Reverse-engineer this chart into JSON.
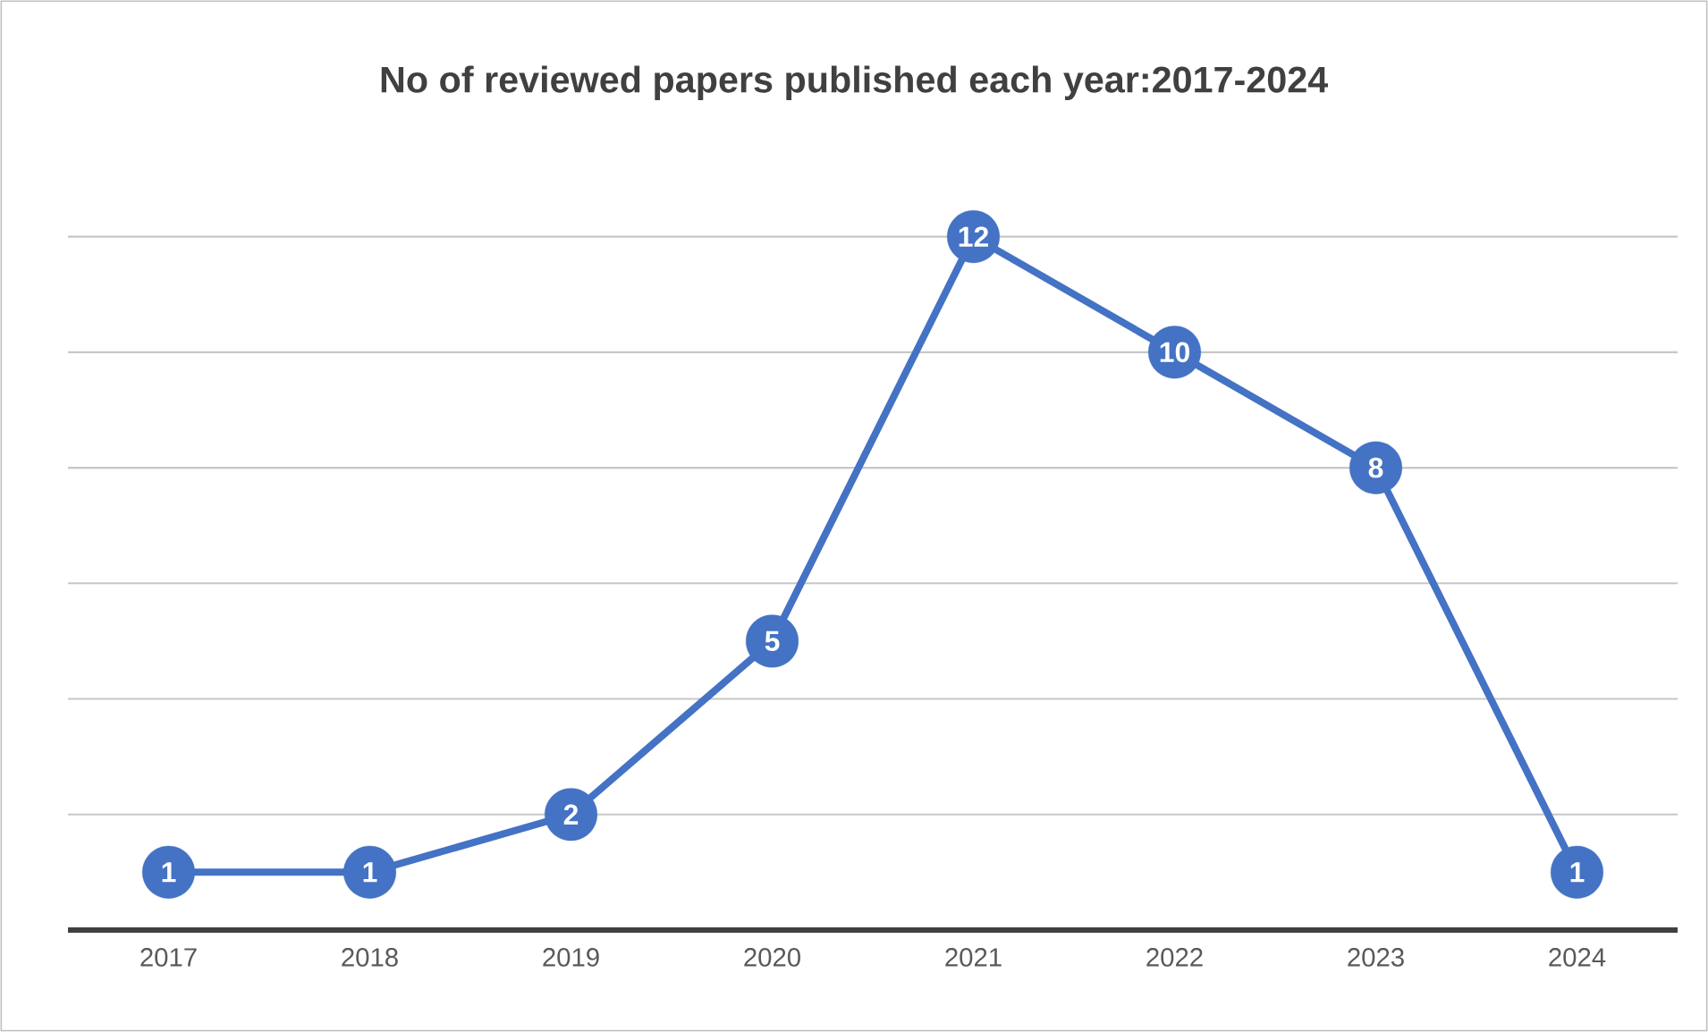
{
  "chart_data": {
    "type": "line",
    "title": "No of reviewed papers published each year:2017-2024",
    "categories": [
      "2017",
      "2018",
      "2019",
      "2020",
      "2021",
      "2022",
      "2023",
      "2024"
    ],
    "series": [
      {
        "color": "#4472c4",
        "values": [
          1,
          1,
          2,
          5,
          12,
          10,
          8,
          1
        ]
      }
    ],
    "tick_labels": "x",
    "grid": "y",
    "marker": "circle",
    "line_style": "solid",
    "data_labels": true
  }
}
